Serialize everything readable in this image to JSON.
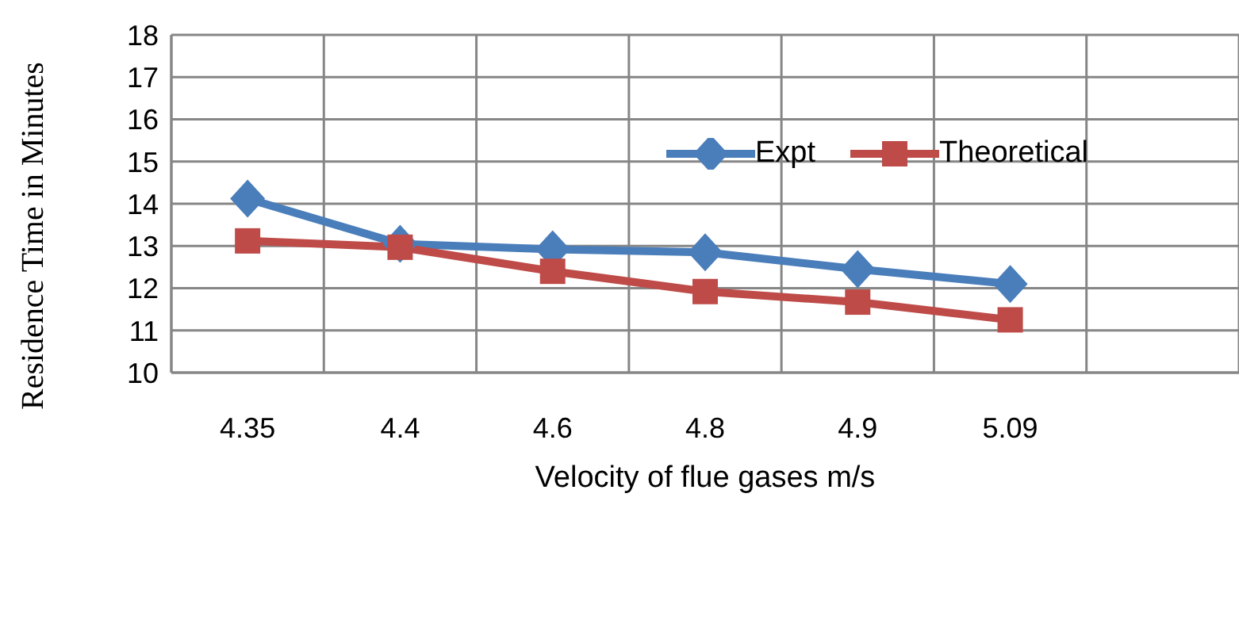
{
  "chart_data": {
    "type": "line",
    "xlabel": "Velocity of  flue  gases   m/s",
    "ylabel": "Residence Time    in Minutes",
    "categories": [
      "4.35",
      "4.4",
      "4.6",
      "4.8",
      "4.9",
      "5.09",
      null
    ],
    "series": [
      {
        "name": "Expt",
        "color": "#4a7ebb",
        "marker": "diamond",
        "values": [
          14.12,
          13.05,
          12.92,
          12.85,
          12.45,
          12.1,
          null
        ]
      },
      {
        "name": "Theoretical",
        "color": "#be4b48",
        "marker": "square",
        "values": [
          13.12,
          12.97,
          12.4,
          11.92,
          11.67,
          11.25,
          null
        ]
      }
    ],
    "ylim": [
      10,
      18
    ],
    "yticks": [
      10,
      11,
      12,
      13,
      14,
      15,
      16,
      17,
      18
    ],
    "grid": true,
    "legend": "top right",
    "line_style": "solid"
  }
}
